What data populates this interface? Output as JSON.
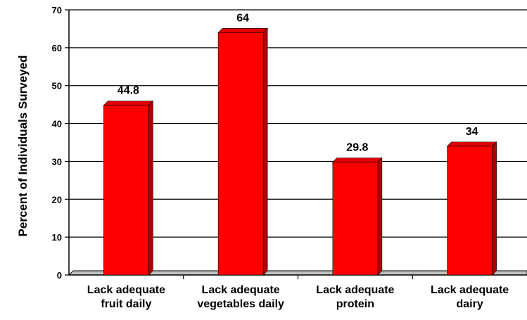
{
  "chart_data": {
    "type": "bar",
    "ylabel": "Percent of Individuals Surveyed",
    "xlabel": "",
    "ylim": [
      0,
      70
    ],
    "yticks": [
      0,
      10,
      20,
      30,
      40,
      50,
      60,
      70
    ],
    "grid": true,
    "bar_color": "#ff0000",
    "bar_side_color": "#b00000",
    "categories": [
      [
        "Lack adequate",
        "fruit daily"
      ],
      [
        "Lack adequate",
        "vegetables daily"
      ],
      [
        "Lack adequate",
        "protein"
      ],
      [
        "Lack adequate",
        "dairy"
      ]
    ],
    "values": [
      44.8,
      64,
      29.8,
      34
    ],
    "data_labels": [
      "44.8",
      "64",
      "29.8",
      "34"
    ]
  }
}
